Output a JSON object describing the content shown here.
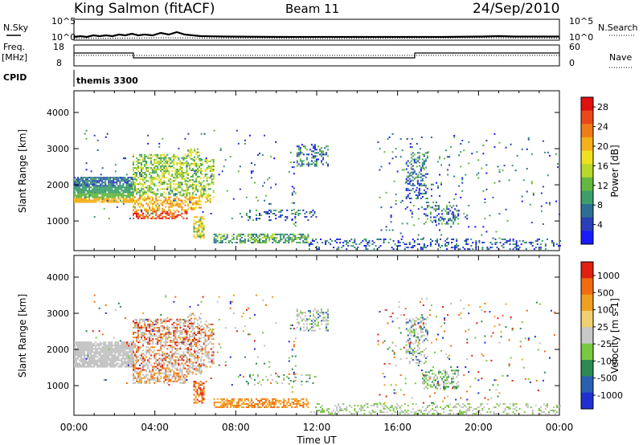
{
  "header": {
    "station": "King Salmon (fitACF)",
    "beam": "Beam 11",
    "date": "24/Sep/2010"
  },
  "top_panels": {
    "nsky_label": "N.Sky",
    "nsky_ticks": [
      "10^5",
      "10^0"
    ],
    "nsearch_label": "N.Search",
    "freq_label_1": "Freq.",
    "freq_label_2": "[MHz]",
    "freq_ticks": [
      "18",
      "8"
    ],
    "nave_label": "Nave",
    "nave_ticks": [
      "60",
      "0"
    ],
    "cpid_label": "CPID",
    "cpid_value": "themis 3300"
  },
  "chart_data": [
    {
      "type": "heatmap",
      "title": "",
      "xlabel": "",
      "ylabel": "Slant Range [km]",
      "x_ticks": [
        "00:00",
        "04:00",
        "08:00",
        "12:00",
        "16:00",
        "20:00",
        "00:00"
      ],
      "xlim_hours": [
        0,
        24
      ],
      "y_ticks": [
        1000,
        2000,
        3000,
        4000
      ],
      "ylim": [
        180,
        4600
      ],
      "colorbar": {
        "label": "Power [dB]",
        "ticks": [
          4,
          8,
          12,
          16,
          20,
          24,
          28
        ],
        "range": [
          0,
          30
        ],
        "colors": [
          "#1a1aff",
          "#2a3fb8",
          "#2e6e96",
          "#3d9e6a",
          "#64b840",
          "#b8d82c",
          "#f0e020",
          "#f5b01c",
          "#f07c18",
          "#e84818",
          "#e01010"
        ]
      }
    },
    {
      "type": "heatmap",
      "title": "",
      "xlabel": "Time UT",
      "ylabel": "Slant Range [km]",
      "x_ticks": [
        "00:00",
        "04:00",
        "08:00",
        "12:00",
        "16:00",
        "20:00",
        "00:00"
      ],
      "xlim_hours": [
        0,
        24
      ],
      "y_ticks": [
        1000,
        2000,
        3000,
        4000
      ],
      "ylim": [
        180,
        4600
      ],
      "colorbar": {
        "label": "Velocity [m s-1]",
        "ticks": [
          "1000",
          "500",
          "100",
          "25",
          "-25",
          "-100",
          "-500",
          "-1000"
        ],
        "colors": [
          "#2030d0",
          "#2a60b0",
          "#2e8a50",
          "#7ac840",
          "#c8c8c8",
          "#f0d070",
          "#f0a020",
          "#f06c10",
          "#e02010"
        ]
      },
      "ground_scatter_color": "#c0c0c0"
    }
  ]
}
